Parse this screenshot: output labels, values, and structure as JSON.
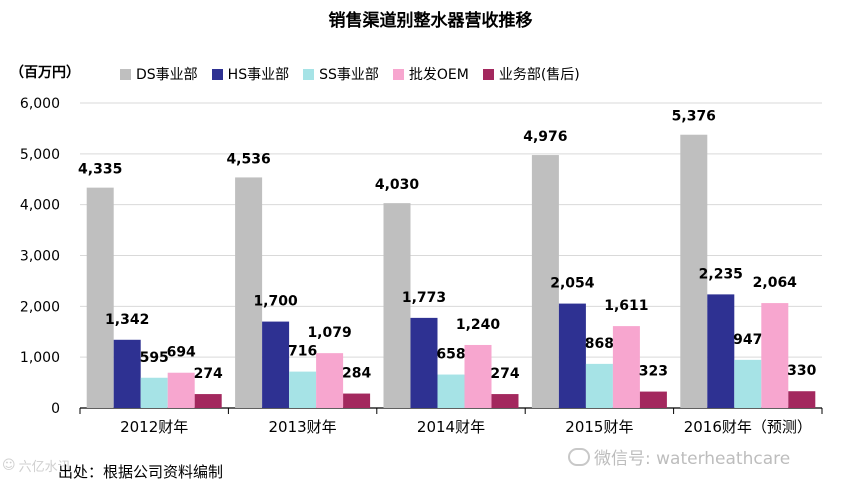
{
  "chart_data": {
    "type": "bar",
    "title": "销售渠道别整水器营收推移",
    "ylabel": "（百万円）",
    "ylim": [
      0,
      6000
    ],
    "yticks": [
      "0",
      "1,000",
      "2,000",
      "3,000",
      "4,000",
      "5,000",
      "6,000"
    ],
    "ytick_values": [
      0,
      1000,
      2000,
      3000,
      4000,
      5000,
      6000
    ],
    "categories": [
      "2012财年",
      "2013财年",
      "2014财年",
      "2015财年",
      "2016财年（预测）"
    ],
    "series": [
      {
        "name": "DS事业部",
        "color": "#bfbfbf",
        "values": [
          4335,
          4536,
          4030,
          4976,
          5376
        ],
        "labels": [
          "4,335",
          "4,536",
          "4,030",
          "4,976",
          "5,376"
        ]
      },
      {
        "name": "HS事业部",
        "color": "#2e3192",
        "values": [
          1342,
          1700,
          1773,
          2054,
          2235
        ],
        "labels": [
          "1,342",
          "1,700",
          "1,773",
          "2,054",
          "2,235"
        ]
      },
      {
        "name": "SS事业部",
        "color": "#a6e3e6",
        "values": [
          595,
          716,
          658,
          868,
          947
        ],
        "labels": [
          "595",
          "716",
          "658",
          "868",
          "947"
        ]
      },
      {
        "name": "批发OEM",
        "color": "#f7a6cf",
        "values": [
          694,
          1079,
          1240,
          1611,
          2064
        ],
        "labels": [
          "694",
          "1,079",
          "1,240",
          "1,611",
          "2,064"
        ]
      },
      {
        "name": "业务部(售后)",
        "color": "#a3285e",
        "values": [
          274,
          284,
          274,
          323,
          330
        ],
        "labels": [
          "274",
          "284",
          "274",
          "323",
          "330"
        ]
      }
    ],
    "grid": true,
    "legend_position": "top"
  },
  "source_note": "出处：根据公司资料编制",
  "watermark": "微信号: waterheathcare",
  "logo_text": "六亿水讯"
}
